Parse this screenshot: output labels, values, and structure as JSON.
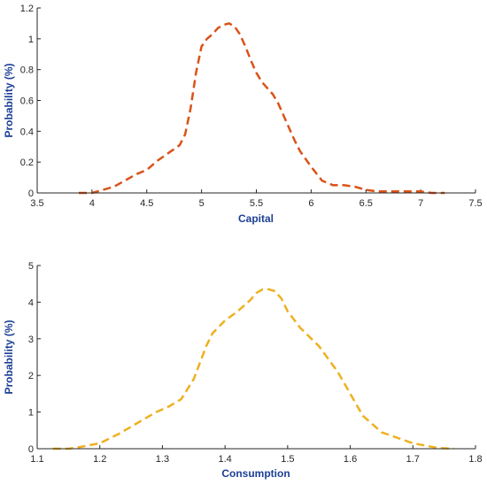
{
  "chart_data": [
    {
      "type": "line",
      "xlabel": "Capital",
      "ylabel": "Probability (%)",
      "xlim": [
        3.5,
        7.5
      ],
      "ylim": [
        0,
        1.2
      ],
      "xticks": [
        "3.5",
        "4",
        "4.5",
        "5",
        "5.5",
        "6",
        "6.5",
        "7",
        "7.5"
      ],
      "yticks": [
        "0",
        "0.2",
        "0.4",
        "0.6",
        "0.8",
        "1",
        "1.2"
      ],
      "grid": false,
      "series": [
        {
          "color": "#d95319",
          "linestyle": "dashed",
          "x": [
            3.88,
            4.0,
            4.1,
            4.2,
            4.3,
            4.4,
            4.5,
            4.6,
            4.7,
            4.8,
            4.85,
            4.9,
            4.95,
            5.0,
            5.05,
            5.1,
            5.15,
            5.2,
            5.25,
            5.3,
            5.35,
            5.4,
            5.45,
            5.5,
            5.55,
            5.6,
            5.65,
            5.7,
            5.75,
            5.8,
            5.85,
            5.9,
            6.0,
            6.1,
            6.2,
            6.3,
            6.4,
            6.5,
            6.6,
            6.8,
            7.0,
            7.1,
            7.22
          ],
          "y": [
            0.0,
            0.0,
            0.02,
            0.04,
            0.08,
            0.12,
            0.15,
            0.21,
            0.26,
            0.31,
            0.38,
            0.55,
            0.78,
            0.95,
            1.0,
            1.03,
            1.07,
            1.09,
            1.1,
            1.08,
            1.03,
            0.95,
            0.86,
            0.78,
            0.72,
            0.68,
            0.64,
            0.58,
            0.5,
            0.42,
            0.34,
            0.27,
            0.17,
            0.08,
            0.05,
            0.05,
            0.04,
            0.02,
            0.01,
            0.01,
            0.01,
            0.0,
            0.0
          ]
        }
      ]
    },
    {
      "type": "line",
      "xlabel": "Consumption",
      "ylabel": "Probability (%)",
      "xlim": [
        1.1,
        1.8
      ],
      "ylim": [
        0,
        5
      ],
      "xticks": [
        "1.1",
        "1.2",
        "1.3",
        "1.4",
        "1.5",
        "1.6",
        "1.7",
        "1.8"
      ],
      "yticks": [
        "0",
        "1",
        "2",
        "3",
        "4",
        "5"
      ],
      "grid": false,
      "series": [
        {
          "color": "#edb120",
          "linestyle": "dashed",
          "x": [
            1.125,
            1.15,
            1.17,
            1.2,
            1.23,
            1.26,
            1.29,
            1.31,
            1.33,
            1.35,
            1.37,
            1.38,
            1.4,
            1.42,
            1.44,
            1.45,
            1.46,
            1.47,
            1.48,
            1.49,
            1.5,
            1.52,
            1.55,
            1.58,
            1.6,
            1.62,
            1.65,
            1.7,
            1.74,
            1.765
          ],
          "y": [
            0.0,
            0.0,
            0.05,
            0.15,
            0.4,
            0.7,
            1.0,
            1.15,
            1.35,
            1.9,
            2.8,
            3.15,
            3.5,
            3.75,
            4.05,
            4.25,
            4.35,
            4.35,
            4.3,
            4.1,
            3.75,
            3.3,
            2.8,
            2.1,
            1.5,
            0.9,
            0.45,
            0.15,
            0.02,
            0.0
          ]
        }
      ]
    }
  ]
}
